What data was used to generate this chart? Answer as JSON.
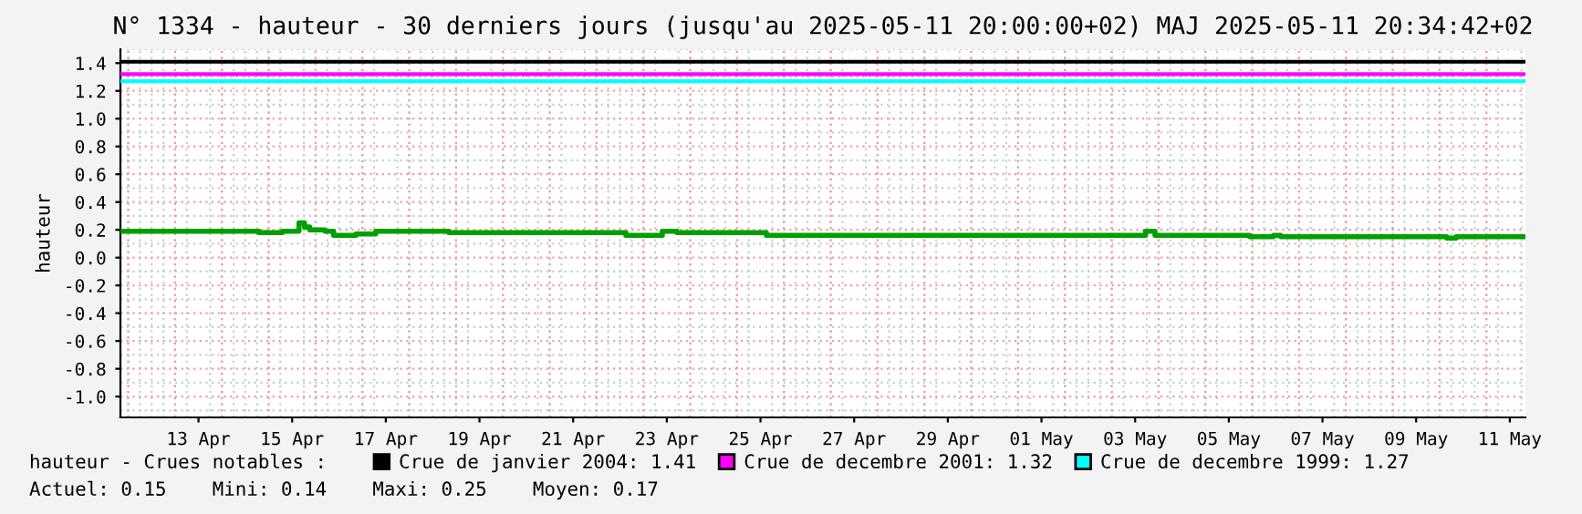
{
  "chart_data": {
    "type": "step",
    "title": "N° 1334 - hauteur - 30 derniers jours (jusqu'au 2025-05-11 20:00:00+02) MAJ 2025-05-11 20:34:42+02",
    "ylabel": "hauteur",
    "x": [
      "2025-04-11T20:00",
      "2025-04-14T19:00",
      "2025-04-15T07:00",
      "2025-04-15T15:30",
      "2025-04-15T18:20",
      "2025-04-15T21:00",
      "2025-04-16T04:40",
      "2025-04-16T09:15",
      "2025-04-16T20:40",
      "2025-04-17T06:50",
      "2025-04-18T20:15",
      "2025-04-22T15:00",
      "2025-04-23T09:40",
      "2025-04-23T17:10",
      "2025-04-25T15:00",
      "2025-05-03T17:20",
      "2025-05-03T22:10",
      "2025-05-05T22:40",
      "2025-05-06T10:50",
      "2025-05-06T14:40",
      "2025-05-10T03:40",
      "2025-05-10T08:30",
      "2025-05-11T19:00"
    ],
    "series": [
      {
        "color": "#00a000",
        "values": [
          0.19,
          0.18,
          0.19,
          0.25,
          0.22,
          0.2,
          0.19,
          0.16,
          0.17,
          0.19,
          0.18,
          0.16,
          0.19,
          0.18,
          0.16,
          0.19,
          0.16,
          0.15,
          0.16,
          0.15,
          0.14,
          0.15,
          0.15
        ]
      }
    ],
    "xlim": [
      "2025-04-11T20:00",
      "2025-05-11T20:00"
    ],
    "xticks": [
      {
        "value": "2025-04-13T12:00",
        "label": "13 Apr"
      },
      {
        "value": "2025-04-15T12:00",
        "label": "15 Apr"
      },
      {
        "value": "2025-04-17T12:00",
        "label": "17 Apr"
      },
      {
        "value": "2025-04-19T12:00",
        "label": "19 Apr"
      },
      {
        "value": "2025-04-21T12:00",
        "label": "21 Apr"
      },
      {
        "value": "2025-04-23T12:00",
        "label": "23 Apr"
      },
      {
        "value": "2025-04-25T12:00",
        "label": "25 Apr"
      },
      {
        "value": "2025-04-27T12:00",
        "label": "27 Apr"
      },
      {
        "value": "2025-04-29T12:00",
        "label": "29 Apr"
      },
      {
        "value": "2025-05-01T12:00",
        "label": "01 May"
      },
      {
        "value": "2025-05-03T12:00",
        "label": "03 May"
      },
      {
        "value": "2025-05-05T12:00",
        "label": "05 May"
      },
      {
        "value": "2025-05-07T12:00",
        "label": "07 May"
      },
      {
        "value": "2025-05-09T12:00",
        "label": "09 May"
      },
      {
        "value": "2025-05-11T12:00",
        "label": "11 May"
      }
    ],
    "ylim": [
      -1.15,
      1.5
    ],
    "yticks": [
      {
        "value": -1.0,
        "label": "-1.0"
      },
      {
        "value": -0.8,
        "label": "-0.8"
      },
      {
        "value": -0.6,
        "label": "-0.6"
      },
      {
        "value": -0.4,
        "label": "-0.4"
      },
      {
        "value": -0.2,
        "label": "-0.2"
      },
      {
        "value": 0.0,
        "label": "0.0"
      },
      {
        "value": 0.2,
        "label": "0.2"
      },
      {
        "value": 0.4,
        "label": "0.4"
      },
      {
        "value": 0.6,
        "label": "0.6"
      },
      {
        "value": 0.8,
        "label": "0.8"
      },
      {
        "value": 1.0,
        "label": "1.0"
      },
      {
        "value": 1.2,
        "label": "1.2"
      },
      {
        "value": 1.4,
        "label": "1.4"
      }
    ],
    "ref_lines": [
      {
        "axis": "y",
        "value": 1.41,
        "label": "Crue de janvier 2004: 1.41",
        "color": "#000000"
      },
      {
        "axis": "y",
        "value": 1.32,
        "label": "Crue de decembre 2001: 1.32",
        "color": "#ff00ff"
      },
      {
        "axis": "y",
        "value": 1.27,
        "label": "Crue de decembre 1999: 1.27",
        "color": "#00ffff"
      }
    ],
    "annotations": [
      "hauteur - Crues notables :",
      "Actuel: 0.15    Mini: 0.14    Maxi: 0.25    Moyen: 0.17"
    ],
    "grid": true,
    "legend": "bottom"
  }
}
